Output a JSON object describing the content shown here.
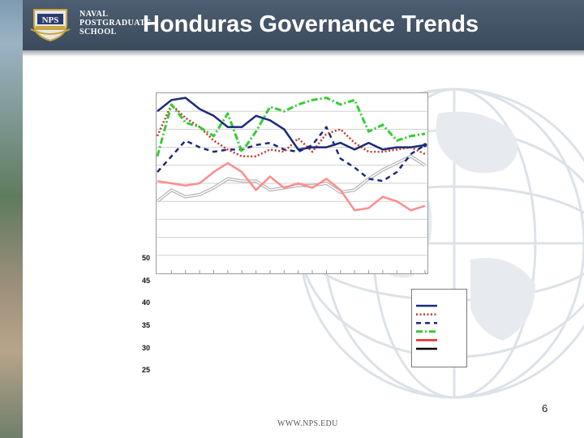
{
  "header": {
    "school_lines": [
      "NAVAL",
      "POSTGRADUATE",
      "SCHOOL"
    ],
    "title": "Honduras Governance Trends"
  },
  "chart_data": {
    "type": "line",
    "title": "",
    "xlabel": "",
    "ylabel": "",
    "ylim": [
      25,
      105
    ],
    "y_ticks_visible": [
      "50",
      "45",
      "40",
      "35",
      "30",
      "25"
    ],
    "grid": true,
    "legend_position": "bottom-right",
    "x": [
      1,
      2,
      3,
      4,
      5,
      6,
      7,
      8,
      9,
      10,
      11,
      12,
      13,
      14,
      15,
      16,
      17,
      18,
      19,
      20
    ],
    "series": [
      {
        "color": "#1b2a7a",
        "style": "solid",
        "values": [
          97,
          102,
          103,
          98,
          95,
          90,
          90,
          95,
          93,
          89,
          80,
          81,
          81,
          83,
          80,
          83,
          80,
          81,
          81,
          82
        ]
      },
      {
        "color": "#c0392b",
        "style": "dotted",
        "values": [
          86,
          100,
          94,
          90,
          84,
          80,
          77,
          77,
          80,
          79,
          85,
          79,
          87,
          89,
          83,
          79,
          79,
          80,
          81,
          78
        ]
      },
      {
        "color": "#1b2a7a",
        "style": "dashed",
        "values": [
          70,
          77,
          84,
          81,
          79,
          80,
          80,
          82,
          83,
          80,
          79,
          82,
          90,
          76,
          72,
          67,
          66,
          70,
          78,
          82
        ]
      },
      {
        "color": "#33cc33",
        "style": "dashdot",
        "values": [
          77,
          100,
          92,
          90,
          86,
          96,
          79,
          88,
          99,
          97,
          100,
          102,
          103,
          100,
          102,
          88,
          91,
          84,
          86,
          87
        ]
      },
      {
        "color": "#ff8c8c",
        "style": "solid",
        "values": [
          66,
          65,
          64,
          65,
          70,
          74,
          70,
          62,
          68,
          63,
          65,
          63,
          67,
          62,
          53,
          54,
          59,
          57,
          53,
          55
        ]
      },
      {
        "color": "#b8b8b8",
        "style": "double",
        "values": [
          57,
          62,
          59,
          60,
          63,
          67,
          66,
          66,
          62,
          63,
          64,
          64,
          65,
          61,
          62,
          67,
          71,
          74,
          77,
          73
        ]
      }
    ],
    "legend_entries": [
      {
        "color": "#1b2a7a",
        "style": "solid"
      },
      {
        "color": "#c0392b",
        "style": "dotted"
      },
      {
        "color": "#1b2a7a",
        "style": "dashed"
      },
      {
        "color": "#33cc33",
        "style": "dashdot"
      },
      {
        "color": "#e8281e",
        "style": "solid"
      },
      {
        "color": "#000000",
        "style": "solid"
      }
    ]
  },
  "footer": {
    "page_number": "6",
    "url": "WWW.NPS.EDU"
  },
  "colors": {
    "header_bg": "#3f4f62",
    "title_text": "#ffffff"
  }
}
